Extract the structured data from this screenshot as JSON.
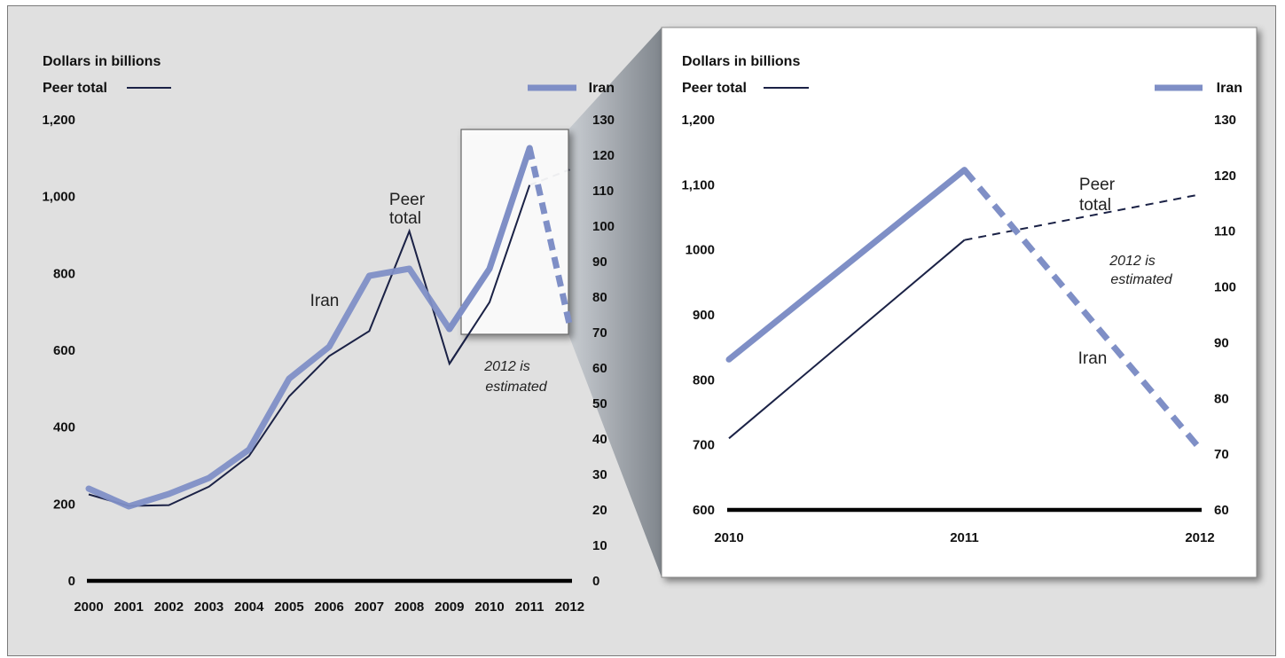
{
  "colors": {
    "peer": "#1b2246",
    "iran": "#7f8fc6",
    "frame_bg": "#e0e0e0",
    "axis": "#000000"
  },
  "chart_data": [
    {
      "type": "line",
      "ylabel": "Dollars in billions",
      "x": [
        "2000",
        "2001",
        "2002",
        "2003",
        "2004",
        "2005",
        "2006",
        "2007",
        "2008",
        "2009",
        "2010",
        "2011",
        "2012"
      ],
      "ylim_left": [
        0,
        1200
      ],
      "yticks_left": [
        "0",
        "200",
        "400",
        "600",
        "800",
        "1,000",
        "1,200"
      ],
      "ylim_right": [
        0,
        130
      ],
      "yticks_right": [
        "0",
        "10",
        "20",
        "30",
        "40",
        "50",
        "60",
        "70",
        "80",
        "90",
        "100",
        "110",
        "120",
        "130"
      ],
      "legend": {
        "left": "Peer total",
        "right": "Iran"
      },
      "series": [
        {
          "name": "Peer total",
          "axis": "left",
          "values": [
            225,
            195,
            197,
            245,
            325,
            480,
            585,
            650,
            910,
            565,
            725,
            1030,
            1070
          ],
          "estimated_from_index": 11
        },
        {
          "name": "Iran",
          "axis": "right",
          "values": [
            26,
            21,
            24.5,
            29,
            37,
            57,
            66,
            86,
            88,
            71,
            88,
            122,
            72
          ],
          "estimated_from_index": 11
        }
      ],
      "annotations": {
        "peer": [
          "Peer",
          "total"
        ],
        "iran": "Iran",
        "estimate": [
          "2012 is",
          "estimated"
        ]
      }
    },
    {
      "type": "line",
      "ylabel": "Dollars in billions",
      "x": [
        "2010",
        "2011",
        "2012"
      ],
      "ylim_left": [
        600,
        1200
      ],
      "yticks_left": [
        "600",
        "700",
        "800",
        "900",
        "1000",
        "1,100",
        "1,200"
      ],
      "ylim_right": [
        60,
        130
      ],
      "yticks_right": [
        "60",
        "70",
        "80",
        "90",
        "100",
        "110",
        "120",
        "130"
      ],
      "legend": {
        "left": "Peer total",
        "right": "Iran"
      },
      "series": [
        {
          "name": "Peer total",
          "axis": "left",
          "values": [
            710,
            1015,
            1085
          ],
          "estimated_from_index": 1
        },
        {
          "name": "Iran",
          "axis": "right",
          "values": [
            87,
            121,
            71
          ],
          "estimated_from_index": 1
        }
      ],
      "annotations": {
        "peer": [
          "Peer",
          "total"
        ],
        "iran": "Iran",
        "estimate": [
          "2012 is",
          "estimated"
        ]
      }
    }
  ]
}
